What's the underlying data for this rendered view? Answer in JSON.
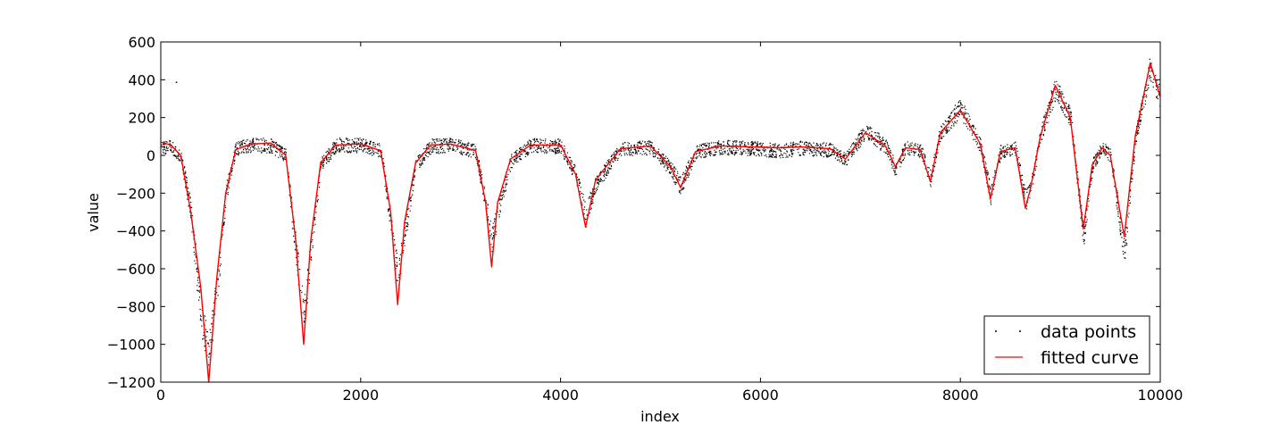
{
  "chart_data": {
    "type": "scatter",
    "title": "",
    "xlabel": "index",
    "ylabel": "value",
    "xlim": [
      0,
      10000
    ],
    "ylim": [
      -1200,
      600
    ],
    "x_ticks": [
      0,
      2000,
      4000,
      6000,
      8000,
      10000
    ],
    "y_ticks": [
      -1200,
      -1000,
      -800,
      -600,
      -400,
      -200,
      0,
      200,
      400,
      600
    ],
    "x_tick_labels": [
      "0",
      "2000",
      "4000",
      "6000",
      "8000",
      "10000"
    ],
    "y_tick_labels": [
      "−1200",
      "−1000",
      "−800",
      "−600",
      "−400",
      "−200",
      "0",
      "200",
      "400",
      "600"
    ],
    "grid": false,
    "legend_position": "bottom-right",
    "colors": {
      "data_points": "#000000",
      "fitted_curve": "#ff0000"
    },
    "series": [
      {
        "name": "data points",
        "style": "dots",
        "x": [
          0,
          100,
          200,
          300,
          400,
          480,
          560,
          650,
          750,
          900,
          1100,
          1250,
          1350,
          1430,
          1500,
          1600,
          1750,
          2000,
          2200,
          2300,
          2370,
          2440,
          2550,
          2700,
          2900,
          3150,
          3250,
          3310,
          3370,
          3500,
          3700,
          4000,
          4150,
          4250,
          4350,
          4600,
          4900,
          5100,
          5200,
          5350,
          5600,
          5900,
          6200,
          6400,
          6700,
          6850,
          7050,
          7250,
          7350,
          7450,
          7600,
          7700,
          7800,
          8000,
          8200,
          8300,
          8400,
          8550,
          8650,
          8700,
          8800,
          8950,
          9100,
          9230,
          9320,
          9420,
          9500,
          9640,
          9750,
          9900,
          10000
        ],
        "y": [
          50,
          45,
          0,
          -300,
          -850,
          -1050,
          -700,
          -200,
          40,
          55,
          55,
          0,
          -500,
          -850,
          -500,
          -50,
          55,
          55,
          25,
          -350,
          -650,
          -400,
          -50,
          50,
          55,
          25,
          -250,
          -450,
          -300,
          -30,
          55,
          50,
          -100,
          -320,
          -150,
          35,
          45,
          -70,
          -160,
          20,
          45,
          40,
          25,
          40,
          30,
          -20,
          130,
          50,
          -70,
          40,
          30,
          -120,
          130,
          250,
          50,
          -210,
          20,
          40,
          -240,
          -180,
          110,
          360,
          200,
          -420,
          -50,
          50,
          0,
          -520,
          100,
          470,
          290
        ],
        "outliers": [
          {
            "x": 150,
            "y": 390
          }
        ]
      },
      {
        "name": "fitted curve",
        "style": "line",
        "x": [
          0,
          100,
          200,
          300,
          400,
          480,
          560,
          650,
          750,
          900,
          1100,
          1250,
          1350,
          1430,
          1500,
          1600,
          1750,
          2000,
          2200,
          2300,
          2370,
          2440,
          2550,
          2700,
          2900,
          3150,
          3250,
          3310,
          3370,
          3500,
          3700,
          4000,
          4150,
          4250,
          4350,
          4600,
          4900,
          5100,
          5200,
          5350,
          5600,
          5900,
          6200,
          6400,
          6700,
          6850,
          7050,
          7250,
          7350,
          7450,
          7600,
          7700,
          7800,
          8000,
          8200,
          8300,
          8400,
          8550,
          8650,
          8700,
          8800,
          8950,
          9100,
          9230,
          9320,
          9420,
          9500,
          9640,
          9750,
          9900,
          10000
        ],
        "y": [
          70,
          55,
          0,
          -300,
          -700,
          -1200,
          -650,
          -200,
          30,
          60,
          65,
          0,
          -450,
          -1000,
          -450,
          -40,
          55,
          60,
          25,
          -300,
          -790,
          -350,
          -40,
          55,
          60,
          25,
          -250,
          -590,
          -250,
          -20,
          55,
          55,
          -100,
          -380,
          -130,
          35,
          50,
          -60,
          -170,
          20,
          50,
          45,
          40,
          45,
          35,
          -20,
          120,
          50,
          -60,
          40,
          30,
          -140,
          120,
          240,
          60,
          -230,
          20,
          40,
          -280,
          -180,
          100,
          370,
          200,
          -390,
          -50,
          40,
          0,
          -430,
          100,
          490,
          310
        ]
      }
    ]
  }
}
